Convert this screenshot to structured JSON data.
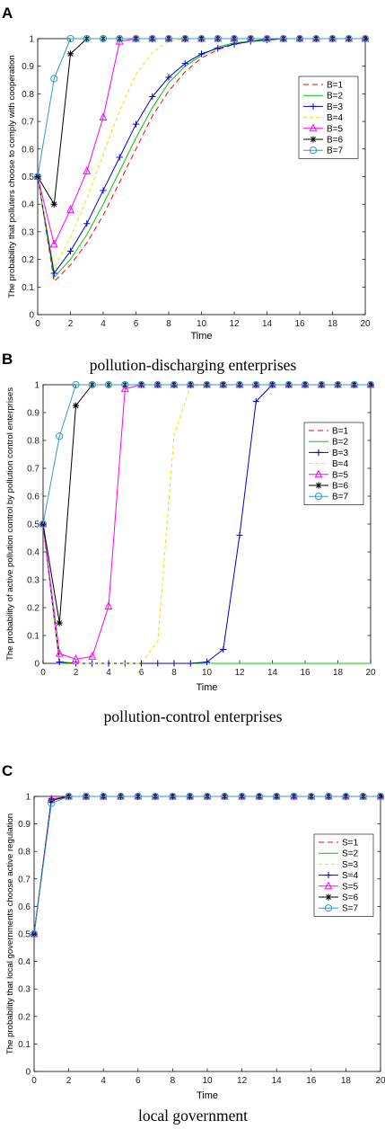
{
  "chart_data": [
    {
      "panel_letter": "A",
      "type": "line",
      "caption": "pollution-discharging enterprises",
      "xlabel": "Time",
      "ylabel": "The probability that polluters choose to comply with cooperation",
      "xlim": [
        0,
        20
      ],
      "ylim": [
        0,
        1
      ],
      "xticks": [
        0,
        2,
        4,
        6,
        8,
        10,
        12,
        14,
        16,
        18,
        20
      ],
      "yticks": [
        0,
        0.1,
        0.2,
        0.3,
        0.4,
        0.5,
        0.6,
        0.7,
        0.8,
        0.9,
        1
      ],
      "legend_position": "top-right",
      "grid": false,
      "x": [
        0,
        1,
        2,
        3,
        4,
        5,
        6,
        7,
        8,
        9,
        10,
        11,
        12,
        13,
        14,
        15,
        16,
        17,
        18,
        19,
        20
      ],
      "series": [
        {
          "name": "B=1",
          "color": "#ff0000",
          "dash": "6,4",
          "marker": "none",
          "values": [
            0.5,
            0.12,
            0.18,
            0.26,
            0.36,
            0.48,
            0.6,
            0.72,
            0.81,
            0.88,
            0.93,
            0.96,
            0.98,
            0.99,
            0.995,
            1,
            1,
            1,
            1,
            1,
            1
          ]
        },
        {
          "name": "B=2",
          "color": "#00cc00",
          "dash": "",
          "marker": "none",
          "values": [
            0.5,
            0.135,
            0.2,
            0.29,
            0.4,
            0.52,
            0.64,
            0.75,
            0.84,
            0.9,
            0.94,
            0.97,
            0.985,
            0.99,
            1,
            1,
            1,
            1,
            1,
            1,
            1
          ]
        },
        {
          "name": "B=3",
          "color": "#0000cc",
          "dash": "",
          "marker": "plus",
          "values": [
            0.5,
            0.15,
            0.23,
            0.33,
            0.45,
            0.57,
            0.69,
            0.79,
            0.86,
            0.91,
            0.945,
            0.965,
            0.98,
            0.99,
            0.995,
            1,
            1,
            1,
            1,
            1,
            1
          ]
        },
        {
          "name": "B=4",
          "color": "#e6e600",
          "dash": "4,3",
          "marker": "none",
          "values": [
            0.5,
            0.17,
            0.28,
            0.42,
            0.58,
            0.74,
            0.87,
            0.95,
            0.99,
            1,
            1,
            1,
            1,
            1,
            1,
            1,
            1,
            1,
            1,
            1,
            1
          ]
        },
        {
          "name": "B=5",
          "color": "#ff00ff",
          "dash": "",
          "marker": "triangle",
          "values": [
            0.5,
            0.255,
            0.38,
            0.52,
            0.715,
            0.99,
            1,
            1,
            1,
            1,
            1,
            1,
            1,
            1,
            1,
            1,
            1,
            1,
            1,
            1,
            1
          ]
        },
        {
          "name": "B=6",
          "color": "#000000",
          "dash": "",
          "marker": "star",
          "values": [
            0.5,
            0.4,
            0.945,
            1,
            1,
            1,
            1,
            1,
            1,
            1,
            1,
            1,
            1,
            1,
            1,
            1,
            1,
            1,
            1,
            1,
            1
          ]
        },
        {
          "name": "B=7",
          "color": "#3399cc",
          "dash": "",
          "marker": "circle",
          "values": [
            0.5,
            0.855,
            1,
            1,
            1,
            1,
            1,
            1,
            1,
            1,
            1,
            1,
            1,
            1,
            1,
            1,
            1,
            1,
            1,
            1,
            1
          ]
        }
      ]
    },
    {
      "panel_letter": "B",
      "type": "line",
      "caption": "pollution-control enterprises",
      "xlabel": "Time",
      "ylabel": "The probability of active pollution control by pollution control enterprises",
      "xlim": [
        0,
        20
      ],
      "ylim": [
        0,
        1
      ],
      "xticks": [
        0,
        2,
        4,
        6,
        8,
        10,
        12,
        14,
        16,
        18,
        20
      ],
      "yticks": [
        0,
        0.1,
        0.2,
        0.3,
        0.4,
        0.5,
        0.6,
        0.7,
        0.8,
        0.9,
        1
      ],
      "legend_position": "top-right",
      "grid": false,
      "x": [
        0,
        1,
        2,
        3,
        4,
        5,
        6,
        7,
        8,
        9,
        10,
        11,
        12,
        13,
        14,
        15,
        16,
        17,
        18,
        19,
        20
      ],
      "series": [
        {
          "name": "B=1",
          "color": "#ff0000",
          "dash": "6,4",
          "marker": "none",
          "values": [
            0.5,
            0,
            0,
            0,
            0,
            0,
            0,
            0,
            0,
            0,
            0,
            0,
            0,
            0,
            0,
            0,
            0,
            0,
            0,
            0,
            0
          ]
        },
        {
          "name": "B=2",
          "color": "#00cc00",
          "dash": "",
          "marker": "none",
          "values": [
            0.5,
            0,
            0,
            0,
            0,
            0,
            0,
            0,
            0,
            0,
            0,
            0,
            0,
            0,
            0,
            0,
            0,
            0,
            0,
            0,
            0
          ]
        },
        {
          "name": "B=3",
          "color": "#0000cc",
          "dash": "",
          "marker": "plus",
          "values": [
            0.5,
            0.005,
            0,
            0,
            0,
            0,
            0,
            0,
            0,
            0,
            0.005,
            0.05,
            0.46,
            0.94,
            1,
            1,
            1,
            1,
            1,
            1,
            1
          ]
        },
        {
          "name": "B=4",
          "color": "#e6e600",
          "dash": "4,3",
          "marker": "none",
          "values": [
            0.5,
            0.01,
            0,
            0,
            0,
            0,
            0,
            0.08,
            0.82,
            0.995,
            1,
            1,
            1,
            1,
            1,
            1,
            1,
            1,
            1,
            1,
            1
          ]
        },
        {
          "name": "B=5",
          "color": "#ff00ff",
          "dash": "",
          "marker": "triangle",
          "values": [
            0.5,
            0.035,
            0.015,
            0.025,
            0.205,
            0.985,
            1,
            1,
            1,
            1,
            1,
            1,
            1,
            1,
            1,
            1,
            1,
            1,
            1,
            1,
            1
          ]
        },
        {
          "name": "B=6",
          "color": "#000000",
          "dash": "",
          "marker": "star",
          "values": [
            0.5,
            0.145,
            0.925,
            1,
            1,
            1,
            1,
            1,
            1,
            1,
            1,
            1,
            1,
            1,
            1,
            1,
            1,
            1,
            1,
            1,
            1
          ]
        },
        {
          "name": "B=7",
          "color": "#3399cc",
          "dash": "",
          "marker": "circle",
          "values": [
            0.5,
            0.815,
            1,
            1,
            1,
            1,
            1,
            1,
            1,
            1,
            1,
            1,
            1,
            1,
            1,
            1,
            1,
            1,
            1,
            1,
            1
          ]
        }
      ]
    },
    {
      "panel_letter": "C",
      "type": "line",
      "caption": "local government",
      "xlabel": "Time",
      "ylabel": "The probability that local governments choose active regulation",
      "xlim": [
        0,
        20
      ],
      "ylim": [
        0,
        1
      ],
      "xticks": [
        0,
        2,
        4,
        6,
        8,
        10,
        12,
        14,
        16,
        18,
        20
      ],
      "yticks": [
        0,
        0.1,
        0.2,
        0.3,
        0.4,
        0.5,
        0.6,
        0.7,
        0.8,
        0.9,
        1
      ],
      "legend_position": "top-right",
      "grid": false,
      "x": [
        0,
        1,
        2,
        3,
        4,
        5,
        6,
        7,
        8,
        9,
        10,
        11,
        12,
        13,
        14,
        15,
        16,
        17,
        18,
        19,
        20
      ],
      "series": [
        {
          "name": "S=1",
          "color": "#ff0000",
          "dash": "6,4",
          "marker": "none",
          "values": [
            0.5,
            0.99,
            1,
            1,
            1,
            1,
            1,
            1,
            1,
            1,
            1,
            1,
            1,
            1,
            1,
            1,
            1,
            1,
            1,
            1,
            1
          ]
        },
        {
          "name": "S=2",
          "color": "#00cc00",
          "dash": "",
          "marker": "none",
          "values": [
            0.5,
            0.99,
            1,
            1,
            1,
            1,
            1,
            1,
            1,
            1,
            1,
            1,
            1,
            1,
            1,
            1,
            1,
            1,
            1,
            1,
            1
          ]
        },
        {
          "name": "S=3",
          "color": "#e6e600",
          "dash": "4,3",
          "marker": "none",
          "values": [
            0.5,
            0.99,
            1,
            1,
            1,
            1,
            1,
            1,
            1,
            1,
            1,
            1,
            1,
            1,
            1,
            1,
            1,
            1,
            1,
            1,
            1
          ]
        },
        {
          "name": "S=4",
          "color": "#0000cc",
          "dash": "",
          "marker": "plus",
          "values": [
            0.5,
            0.99,
            1,
            1,
            1,
            1,
            1,
            1,
            1,
            1,
            1,
            1,
            1,
            1,
            1,
            1,
            1,
            1,
            1,
            1,
            1
          ]
        },
        {
          "name": "S=5",
          "color": "#ff00ff",
          "dash": "",
          "marker": "triangle",
          "values": [
            0.5,
            0.99,
            1,
            1,
            1,
            1,
            1,
            1,
            1,
            1,
            1,
            1,
            1,
            1,
            1,
            1,
            1,
            1,
            1,
            1,
            1
          ]
        },
        {
          "name": "S=6",
          "color": "#000000",
          "dash": "",
          "marker": "star",
          "values": [
            0.5,
            0.985,
            1,
            1,
            1,
            1,
            1,
            1,
            1,
            1,
            1,
            1,
            1,
            1,
            1,
            1,
            1,
            1,
            1,
            1,
            1
          ]
        },
        {
          "name": "S=7",
          "color": "#3399cc",
          "dash": "",
          "marker": "circle",
          "values": [
            0.5,
            0.975,
            1,
            1,
            1,
            1,
            1,
            1,
            1,
            1,
            1,
            1,
            1,
            1,
            1,
            1,
            1,
            1,
            1,
            1,
            1
          ]
        }
      ]
    }
  ]
}
